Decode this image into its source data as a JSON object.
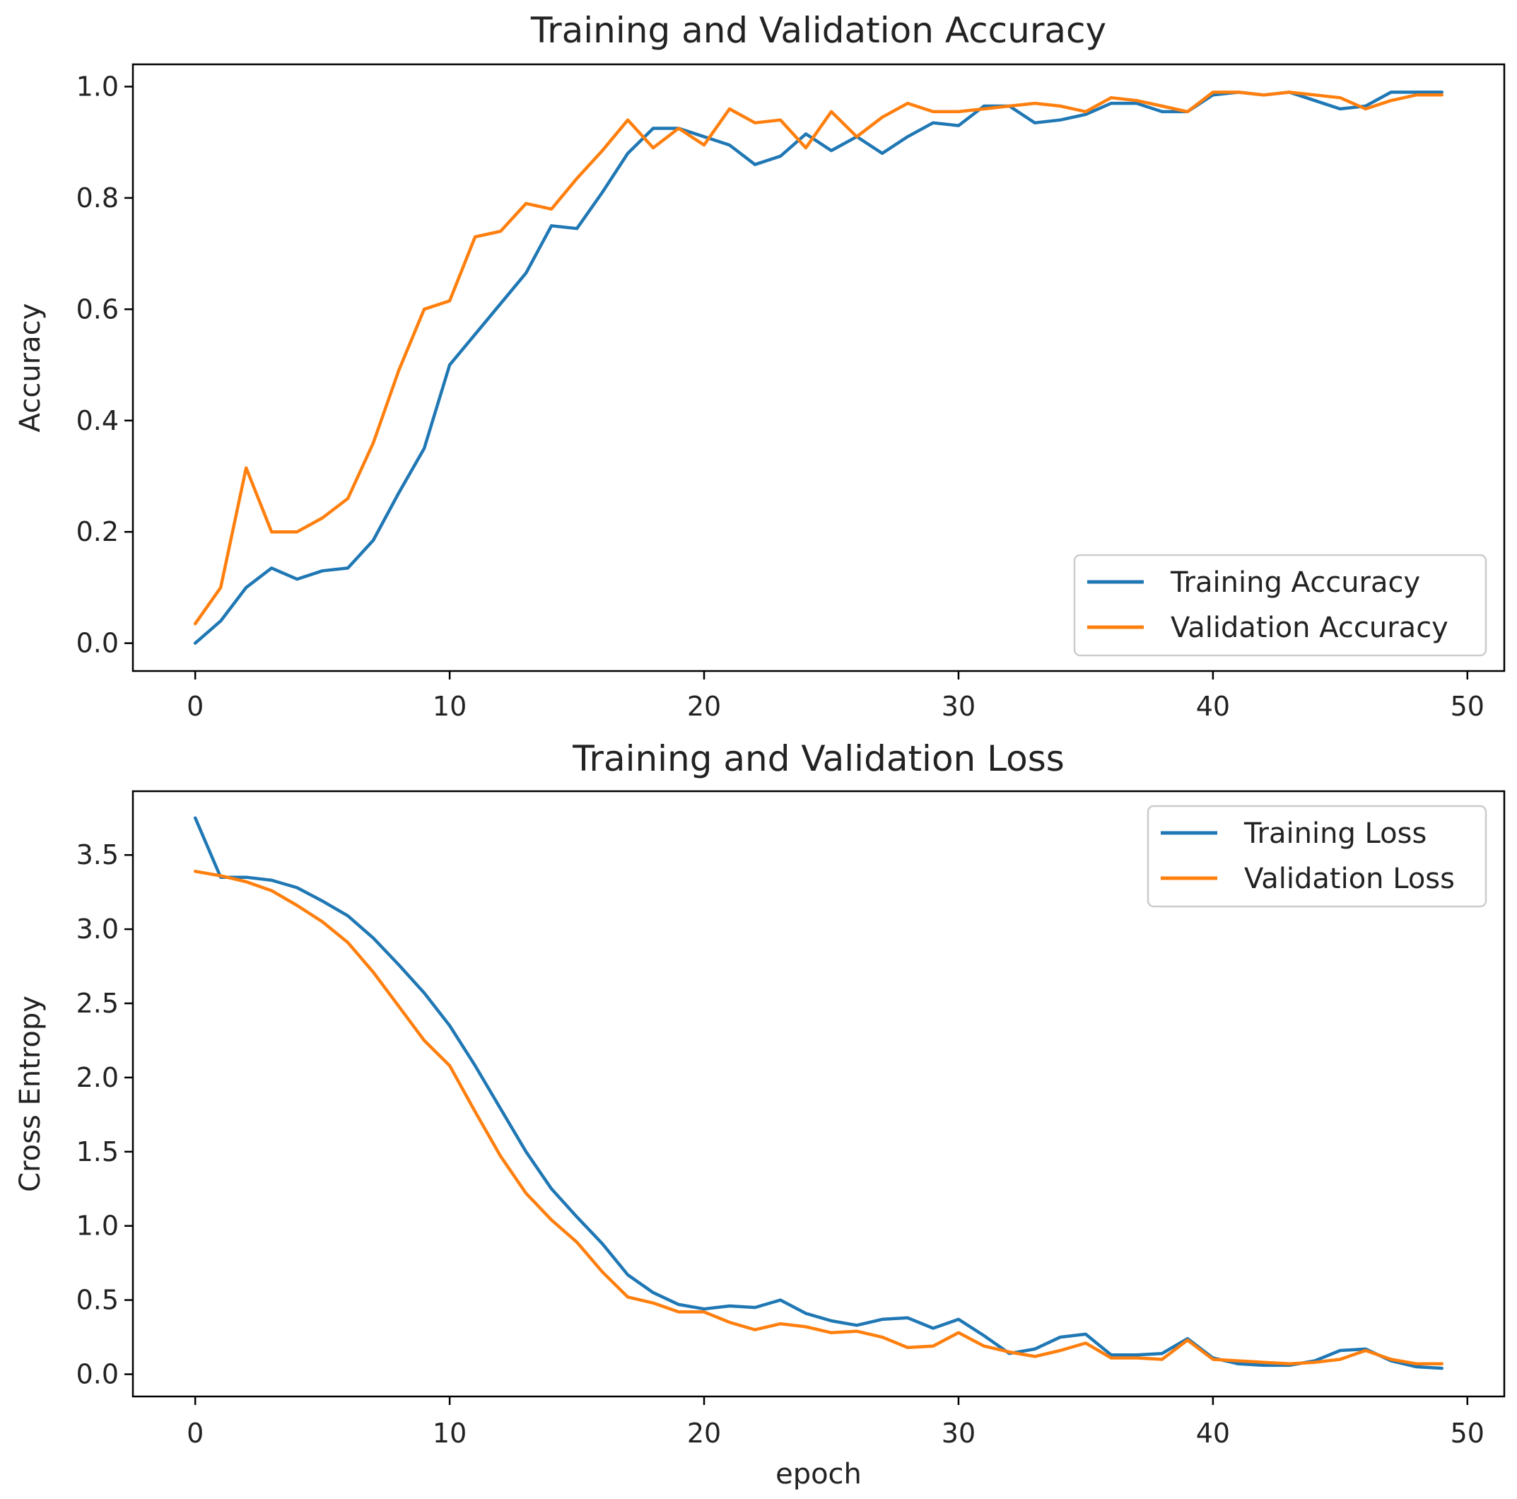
{
  "colors": {
    "training": "#1f77b4",
    "validation": "#ff7f0e",
    "frame": "#000000",
    "legend_border": "#cccccc"
  },
  "chart_data": [
    {
      "type": "line",
      "title": "Training and Validation Accuracy",
      "xlabel": "",
      "ylabel": "Accuracy",
      "xlim": [
        -2.45,
        51.45
      ],
      "ylim": [
        -0.05,
        1.04
      ],
      "xticks": [
        0,
        10,
        20,
        30,
        40,
        50
      ],
      "xtick_labels": [
        "0",
        "10",
        "20",
        "30",
        "40",
        "50"
      ],
      "yticks": [
        0.0,
        0.2,
        0.4,
        0.6,
        0.8,
        1.0
      ],
      "ytick_labels": [
        "0.0",
        "0.2",
        "0.4",
        "0.6",
        "0.8",
        "1.0"
      ],
      "legend_position": "lower-right",
      "grid": false,
      "x": [
        0,
        1,
        2,
        3,
        4,
        5,
        6,
        7,
        8,
        9,
        10,
        11,
        12,
        13,
        14,
        15,
        16,
        17,
        18,
        19,
        20,
        21,
        22,
        23,
        24,
        25,
        26,
        27,
        28,
        29,
        30,
        31,
        32,
        33,
        34,
        35,
        36,
        37,
        38,
        39,
        40,
        41,
        42,
        43,
        44,
        45,
        46,
        47,
        48,
        49
      ],
      "series": [
        {
          "name": "Training Accuracy",
          "color_key": "training",
          "values": [
            0.0,
            0.04,
            0.1,
            0.135,
            0.115,
            0.13,
            0.135,
            0.185,
            0.27,
            0.35,
            0.5,
            0.555,
            0.61,
            0.665,
            0.75,
            0.745,
            0.81,
            0.88,
            0.925,
            0.925,
            0.91,
            0.895,
            0.86,
            0.875,
            0.915,
            0.885,
            0.91,
            0.88,
            0.91,
            0.935,
            0.93,
            0.965,
            0.965,
            0.935,
            0.94,
            0.95,
            0.97,
            0.97,
            0.955,
            0.955,
            0.985,
            0.99,
            0.985,
            0.99,
            0.975,
            0.96,
            0.965,
            0.99,
            0.99,
            0.99
          ]
        },
        {
          "name": "Validation Accuracy",
          "color_key": "validation",
          "values": [
            0.035,
            0.1,
            0.315,
            0.2,
            0.2,
            0.225,
            0.26,
            0.36,
            0.49,
            0.6,
            0.615,
            0.73,
            0.74,
            0.79,
            0.78,
            0.835,
            0.885,
            0.94,
            0.89,
            0.925,
            0.895,
            0.96,
            0.935,
            0.94,
            0.89,
            0.955,
            0.91,
            0.945,
            0.97,
            0.955,
            0.955,
            0.96,
            0.965,
            0.97,
            0.965,
            0.955,
            0.98,
            0.975,
            0.965,
            0.955,
            0.99,
            0.99,
            0.985,
            0.99,
            0.985,
            0.98,
            0.96,
            0.975,
            0.985,
            0.985
          ]
        }
      ]
    },
    {
      "type": "line",
      "title": "Training and Validation Loss",
      "xlabel": "epoch",
      "ylabel": "Cross Entropy",
      "xlim": [
        -2.45,
        51.45
      ],
      "ylim": [
        -0.15,
        3.93
      ],
      "xticks": [
        0,
        10,
        20,
        30,
        40,
        50
      ],
      "xtick_labels": [
        "0",
        "10",
        "20",
        "30",
        "40",
        "50"
      ],
      "yticks": [
        0.0,
        0.5,
        1.0,
        1.5,
        2.0,
        2.5,
        3.0,
        3.5
      ],
      "ytick_labels": [
        "0.0",
        "0.5",
        "1.0",
        "1.5",
        "2.0",
        "2.5",
        "3.0",
        "3.5"
      ],
      "legend_position": "upper-right",
      "grid": false,
      "x": [
        0,
        1,
        2,
        3,
        4,
        5,
        6,
        7,
        8,
        9,
        10,
        11,
        12,
        13,
        14,
        15,
        16,
        17,
        18,
        19,
        20,
        21,
        22,
        23,
        24,
        25,
        26,
        27,
        28,
        29,
        30,
        31,
        32,
        33,
        34,
        35,
        36,
        37,
        38,
        39,
        40,
        41,
        42,
        43,
        44,
        45,
        46,
        47,
        48,
        49
      ],
      "series": [
        {
          "name": "Training Loss",
          "color_key": "training",
          "values": [
            3.75,
            3.35,
            3.35,
            3.33,
            3.28,
            3.19,
            3.09,
            2.94,
            2.76,
            2.57,
            2.35,
            2.08,
            1.79,
            1.5,
            1.25,
            1.06,
            0.88,
            0.67,
            0.55,
            0.47,
            0.44,
            0.46,
            0.45,
            0.5,
            0.41,
            0.36,
            0.33,
            0.37,
            0.38,
            0.31,
            0.37,
            0.26,
            0.14,
            0.17,
            0.25,
            0.27,
            0.13,
            0.13,
            0.14,
            0.24,
            0.11,
            0.07,
            0.06,
            0.06,
            0.09,
            0.16,
            0.17,
            0.09,
            0.05,
            0.04
          ]
        },
        {
          "name": "Validation Loss",
          "color_key": "validation",
          "values": [
            3.39,
            3.36,
            3.32,
            3.26,
            3.16,
            3.05,
            2.91,
            2.71,
            2.48,
            2.25,
            2.08,
            1.77,
            1.47,
            1.22,
            1.04,
            0.89,
            0.69,
            0.52,
            0.48,
            0.42,
            0.42,
            0.35,
            0.3,
            0.34,
            0.32,
            0.28,
            0.29,
            0.25,
            0.18,
            0.19,
            0.28,
            0.19,
            0.15,
            0.12,
            0.16,
            0.21,
            0.11,
            0.11,
            0.1,
            0.23,
            0.1,
            0.09,
            0.08,
            0.07,
            0.08,
            0.1,
            0.16,
            0.1,
            0.07,
            0.07
          ]
        }
      ]
    }
  ]
}
